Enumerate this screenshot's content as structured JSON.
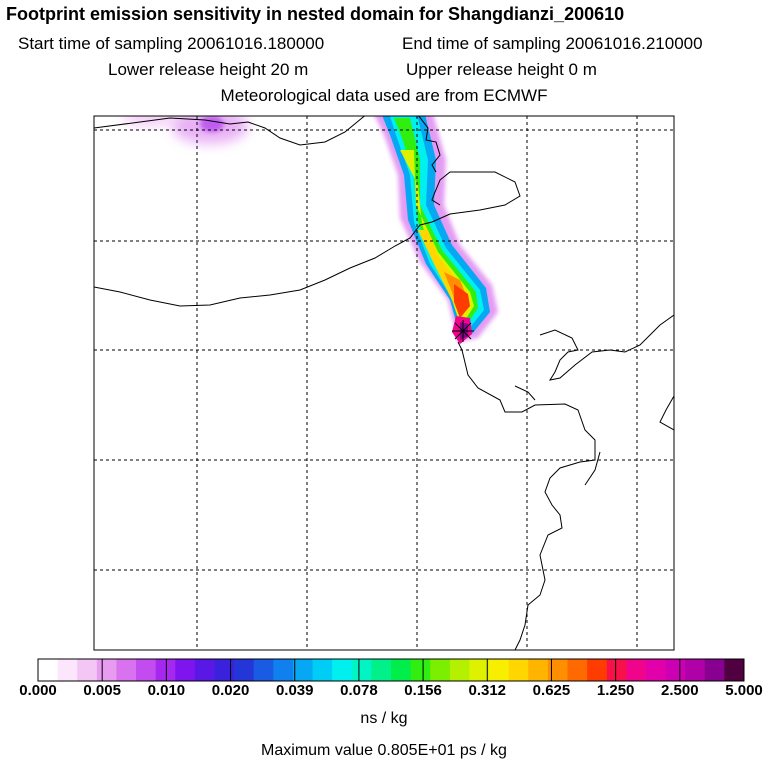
{
  "header": {
    "title": "Footprint emission sensitivity in nested domain for Shangdianzi_200610",
    "start_time": "Start time of sampling 20061016.180000",
    "end_time": "End time of sampling 20061016.210000",
    "lower_height": "Lower release height   20 m",
    "upper_height": "Upper release height    0 m",
    "met_data": "Meteorological data used are from ECMWF"
  },
  "colorbar": {
    "ticks": [
      "0.000",
      "0.005",
      "0.010",
      "0.020",
      "0.039",
      "0.078",
      "0.156",
      "0.312",
      "0.625",
      "1.250",
      "2.500",
      "5.000"
    ],
    "colors": [
      "#ffffff",
      "#fbe6fb",
      "#f3c6f5",
      "#e89cf0",
      "#d872ee",
      "#c24cf0",
      "#a628ef",
      "#7e15ee",
      "#5a18e6",
      "#3a22dc",
      "#2436d8",
      "#1a5be4",
      "#0f80ee",
      "#06a8f3",
      "#00cdf6",
      "#00f0f0",
      "#00f4c4",
      "#00f08a",
      "#00ee4c",
      "#30ee10",
      "#7cee00",
      "#b4f000",
      "#def200",
      "#f7ee00",
      "#ffd600",
      "#ffb400",
      "#ff8e00",
      "#ff6a00",
      "#ff3c00",
      "#f8104a",
      "#f0048c",
      "#e200aa",
      "#cc00b2",
      "#b000a8",
      "#880090",
      "#500040"
    ],
    "unit": "ns / kg"
  },
  "footer": {
    "max_value": "Maximum value  0.805E+01 ps / kg"
  },
  "map": {
    "receptor_marker": "star-icon",
    "plume_colors": [
      "#d872ee",
      "#06a8f3",
      "#00f0f0",
      "#30ee10",
      "#def200",
      "#ffd600",
      "#ff8e00",
      "#ff3c00",
      "#f0048c"
    ]
  }
}
